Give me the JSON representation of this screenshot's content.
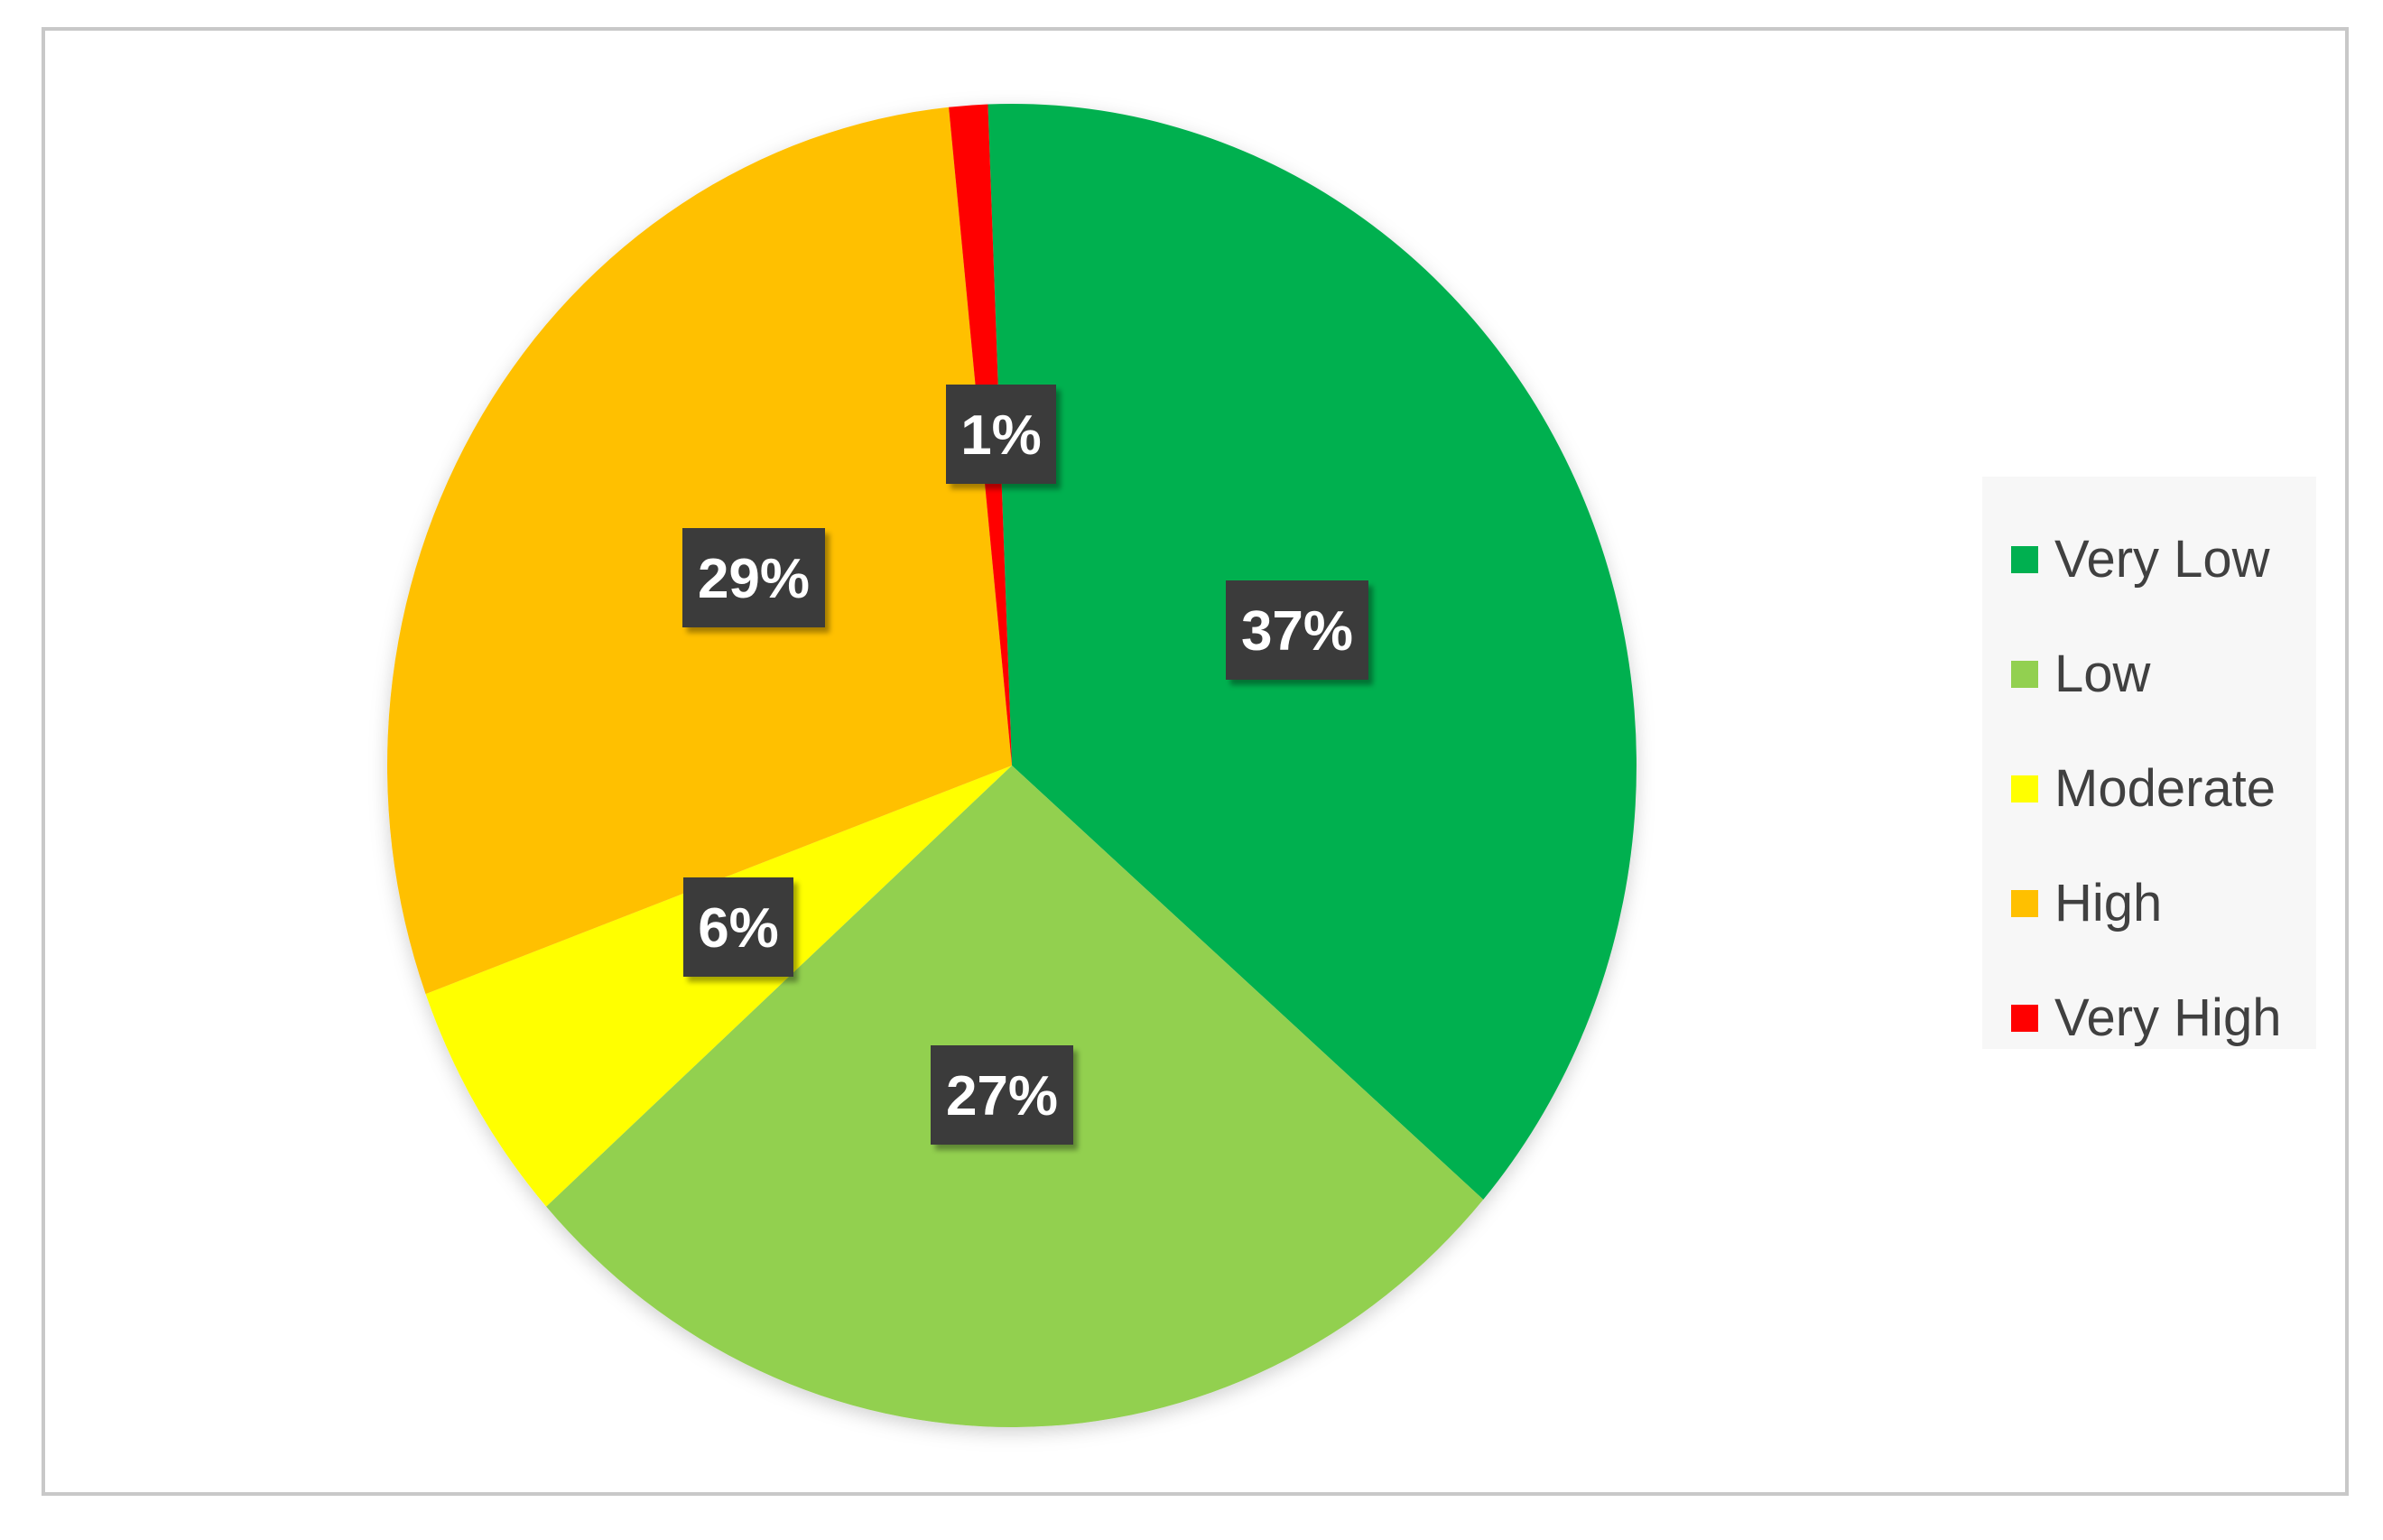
{
  "chart_data": {
    "type": "pie",
    "title": "",
    "start_angle_deg": -2.2,
    "direction": "clockwise",
    "slices": [
      {
        "name": "Very Low",
        "value": 37,
        "label": "37%",
        "color": "#00b050"
      },
      {
        "name": "Low",
        "value": 27,
        "label": "27%",
        "color": "#92d050"
      },
      {
        "name": "Moderate",
        "value": 6,
        "label": "6%",
        "color": "#ffff00"
      },
      {
        "name": "High",
        "value": 29,
        "label": "29%",
        "color": "#ffc000"
      },
      {
        "name": "Very High",
        "value": 1,
        "label": "1%",
        "color": "#ff0000"
      }
    ],
    "legend": {
      "position": "right"
    },
    "data_labels": {
      "style": "dark box, white bold text"
    }
  }
}
